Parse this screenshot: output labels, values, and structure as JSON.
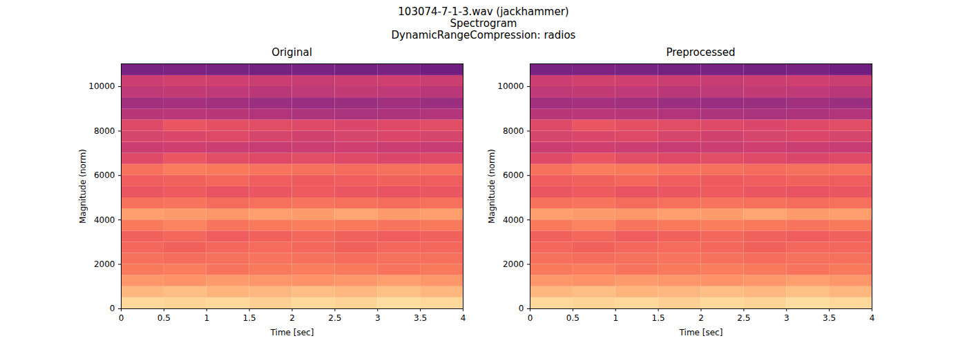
{
  "title": [
    "103074-7-1-3.wav (jackhammer)",
    "Spectrogram",
    "DynamicRangeCompression: radios"
  ],
  "chart_data": [
    {
      "type": "heatmap",
      "title": "Original",
      "x_label": "Time [sec]",
      "y_label": "Magnitude (norm)",
      "color": "magma",
      "zlim": [
        0,
        1
      ],
      "xlim": [
        0,
        4
      ],
      "ylim": [
        0,
        11025
      ],
      "xticks": [
        0,
        0.5,
        1,
        1.5,
        2,
        2.5,
        3,
        3.5,
        4
      ],
      "yticks": [
        0,
        2000,
        4000,
        6000,
        8000,
        10000
      ],
      "x": [
        0,
        0.5,
        1,
        1.5,
        2,
        2.5,
        3,
        3.5,
        4
      ],
      "y": [
        0,
        500,
        1000,
        1500,
        2000,
        2500,
        3000,
        3500,
        4000,
        4500,
        5000,
        5500,
        6000,
        6500,
        7000,
        7500,
        8000,
        8500,
        9000,
        9500,
        10000,
        10500,
        11025
      ],
      "values": [
        [
          0.92,
          0.91,
          0.92,
          0.9,
          0.92,
          0.91,
          0.93,
          0.92
        ],
        [
          0.85,
          0.86,
          0.84,
          0.85,
          0.86,
          0.85,
          0.87,
          0.85
        ],
        [
          0.78,
          0.77,
          0.79,
          0.78,
          0.77,
          0.78,
          0.8,
          0.78
        ],
        [
          0.72,
          0.73,
          0.71,
          0.72,
          0.73,
          0.72,
          0.71,
          0.72
        ],
        [
          0.7,
          0.69,
          0.7,
          0.71,
          0.7,
          0.69,
          0.7,
          0.7
        ],
        [
          0.68,
          0.67,
          0.68,
          0.69,
          0.68,
          0.67,
          0.68,
          0.68
        ],
        [
          0.67,
          0.68,
          0.66,
          0.67,
          0.68,
          0.67,
          0.66,
          0.67
        ],
        [
          0.72,
          0.74,
          0.71,
          0.72,
          0.73,
          0.72,
          0.71,
          0.72
        ],
        [
          0.8,
          0.79,
          0.78,
          0.8,
          0.79,
          0.81,
          0.79,
          0.8
        ],
        [
          0.7,
          0.71,
          0.69,
          0.7,
          0.71,
          0.7,
          0.69,
          0.7
        ],
        [
          0.64,
          0.65,
          0.63,
          0.64,
          0.65,
          0.64,
          0.63,
          0.64
        ],
        [
          0.66,
          0.67,
          0.68,
          0.66,
          0.65,
          0.66,
          0.67,
          0.66
        ],
        [
          0.7,
          0.73,
          0.72,
          0.71,
          0.7,
          0.69,
          0.7,
          0.7
        ],
        [
          0.6,
          0.64,
          0.61,
          0.6,
          0.61,
          0.6,
          0.59,
          0.6
        ],
        [
          0.55,
          0.56,
          0.55,
          0.54,
          0.55,
          0.56,
          0.55,
          0.54
        ],
        [
          0.58,
          0.59,
          0.6,
          0.58,
          0.57,
          0.58,
          0.59,
          0.58
        ],
        [
          0.6,
          0.64,
          0.62,
          0.61,
          0.6,
          0.59,
          0.6,
          0.61
        ],
        [
          0.5,
          0.51,
          0.5,
          0.49,
          0.48,
          0.47,
          0.48,
          0.49
        ],
        [
          0.45,
          0.46,
          0.45,
          0.44,
          0.43,
          0.44,
          0.45,
          0.44
        ],
        [
          0.52,
          0.53,
          0.52,
          0.51,
          0.52,
          0.53,
          0.52,
          0.51
        ],
        [
          0.55,
          0.57,
          0.56,
          0.55,
          0.54,
          0.55,
          0.56,
          0.55
        ],
        [
          0.35,
          0.36,
          0.35,
          0.34,
          0.35,
          0.34,
          0.35,
          0.33
        ]
      ]
    },
    {
      "type": "heatmap",
      "title": "Preprocessed",
      "x_label": "Time [sec]",
      "y_label": "Magnitude (norm)",
      "color": "magma",
      "zlim": [
        0,
        1
      ],
      "xlim": [
        0,
        4
      ],
      "ylim": [
        0,
        11025
      ],
      "xticks": [
        0,
        0.5,
        1,
        1.5,
        2,
        2.5,
        3,
        3.5,
        4
      ],
      "yticks": [
        0,
        2000,
        4000,
        6000,
        8000,
        10000
      ],
      "x": [
        0,
        0.5,
        1,
        1.5,
        2,
        2.5,
        3,
        3.5,
        4
      ],
      "y": [
        0,
        500,
        1000,
        1500,
        2000,
        2500,
        3000,
        3500,
        4000,
        4500,
        5000,
        5500,
        6000,
        6500,
        7000,
        7500,
        8000,
        8500,
        9000,
        9500,
        10000,
        10500,
        11025
      ],
      "values": [
        [
          0.92,
          0.91,
          0.92,
          0.9,
          0.92,
          0.91,
          0.93,
          0.92
        ],
        [
          0.85,
          0.86,
          0.84,
          0.85,
          0.86,
          0.85,
          0.87,
          0.85
        ],
        [
          0.78,
          0.77,
          0.79,
          0.78,
          0.77,
          0.78,
          0.8,
          0.78
        ],
        [
          0.72,
          0.73,
          0.71,
          0.72,
          0.73,
          0.72,
          0.71,
          0.72
        ],
        [
          0.7,
          0.69,
          0.7,
          0.71,
          0.7,
          0.69,
          0.7,
          0.7
        ],
        [
          0.68,
          0.67,
          0.68,
          0.69,
          0.68,
          0.67,
          0.68,
          0.68
        ],
        [
          0.67,
          0.68,
          0.66,
          0.67,
          0.68,
          0.67,
          0.66,
          0.67
        ],
        [
          0.72,
          0.74,
          0.71,
          0.72,
          0.73,
          0.72,
          0.71,
          0.72
        ],
        [
          0.8,
          0.79,
          0.78,
          0.8,
          0.79,
          0.81,
          0.79,
          0.8
        ],
        [
          0.7,
          0.71,
          0.69,
          0.7,
          0.71,
          0.7,
          0.69,
          0.7
        ],
        [
          0.64,
          0.65,
          0.63,
          0.64,
          0.65,
          0.64,
          0.63,
          0.64
        ],
        [
          0.66,
          0.67,
          0.68,
          0.66,
          0.65,
          0.66,
          0.67,
          0.66
        ],
        [
          0.7,
          0.73,
          0.72,
          0.71,
          0.7,
          0.69,
          0.7,
          0.7
        ],
        [
          0.6,
          0.64,
          0.61,
          0.6,
          0.61,
          0.6,
          0.59,
          0.6
        ],
        [
          0.55,
          0.56,
          0.55,
          0.54,
          0.55,
          0.56,
          0.55,
          0.54
        ],
        [
          0.58,
          0.59,
          0.6,
          0.58,
          0.57,
          0.58,
          0.59,
          0.58
        ],
        [
          0.6,
          0.64,
          0.62,
          0.61,
          0.6,
          0.59,
          0.6,
          0.61
        ],
        [
          0.5,
          0.51,
          0.5,
          0.49,
          0.48,
          0.47,
          0.48,
          0.49
        ],
        [
          0.45,
          0.46,
          0.45,
          0.44,
          0.43,
          0.44,
          0.45,
          0.44
        ],
        [
          0.52,
          0.53,
          0.52,
          0.51,
          0.52,
          0.53,
          0.52,
          0.51
        ],
        [
          0.55,
          0.57,
          0.56,
          0.55,
          0.54,
          0.55,
          0.56,
          0.55
        ],
        [
          0.35,
          0.36,
          0.35,
          0.34,
          0.35,
          0.34,
          0.35,
          0.33
        ]
      ]
    }
  ]
}
